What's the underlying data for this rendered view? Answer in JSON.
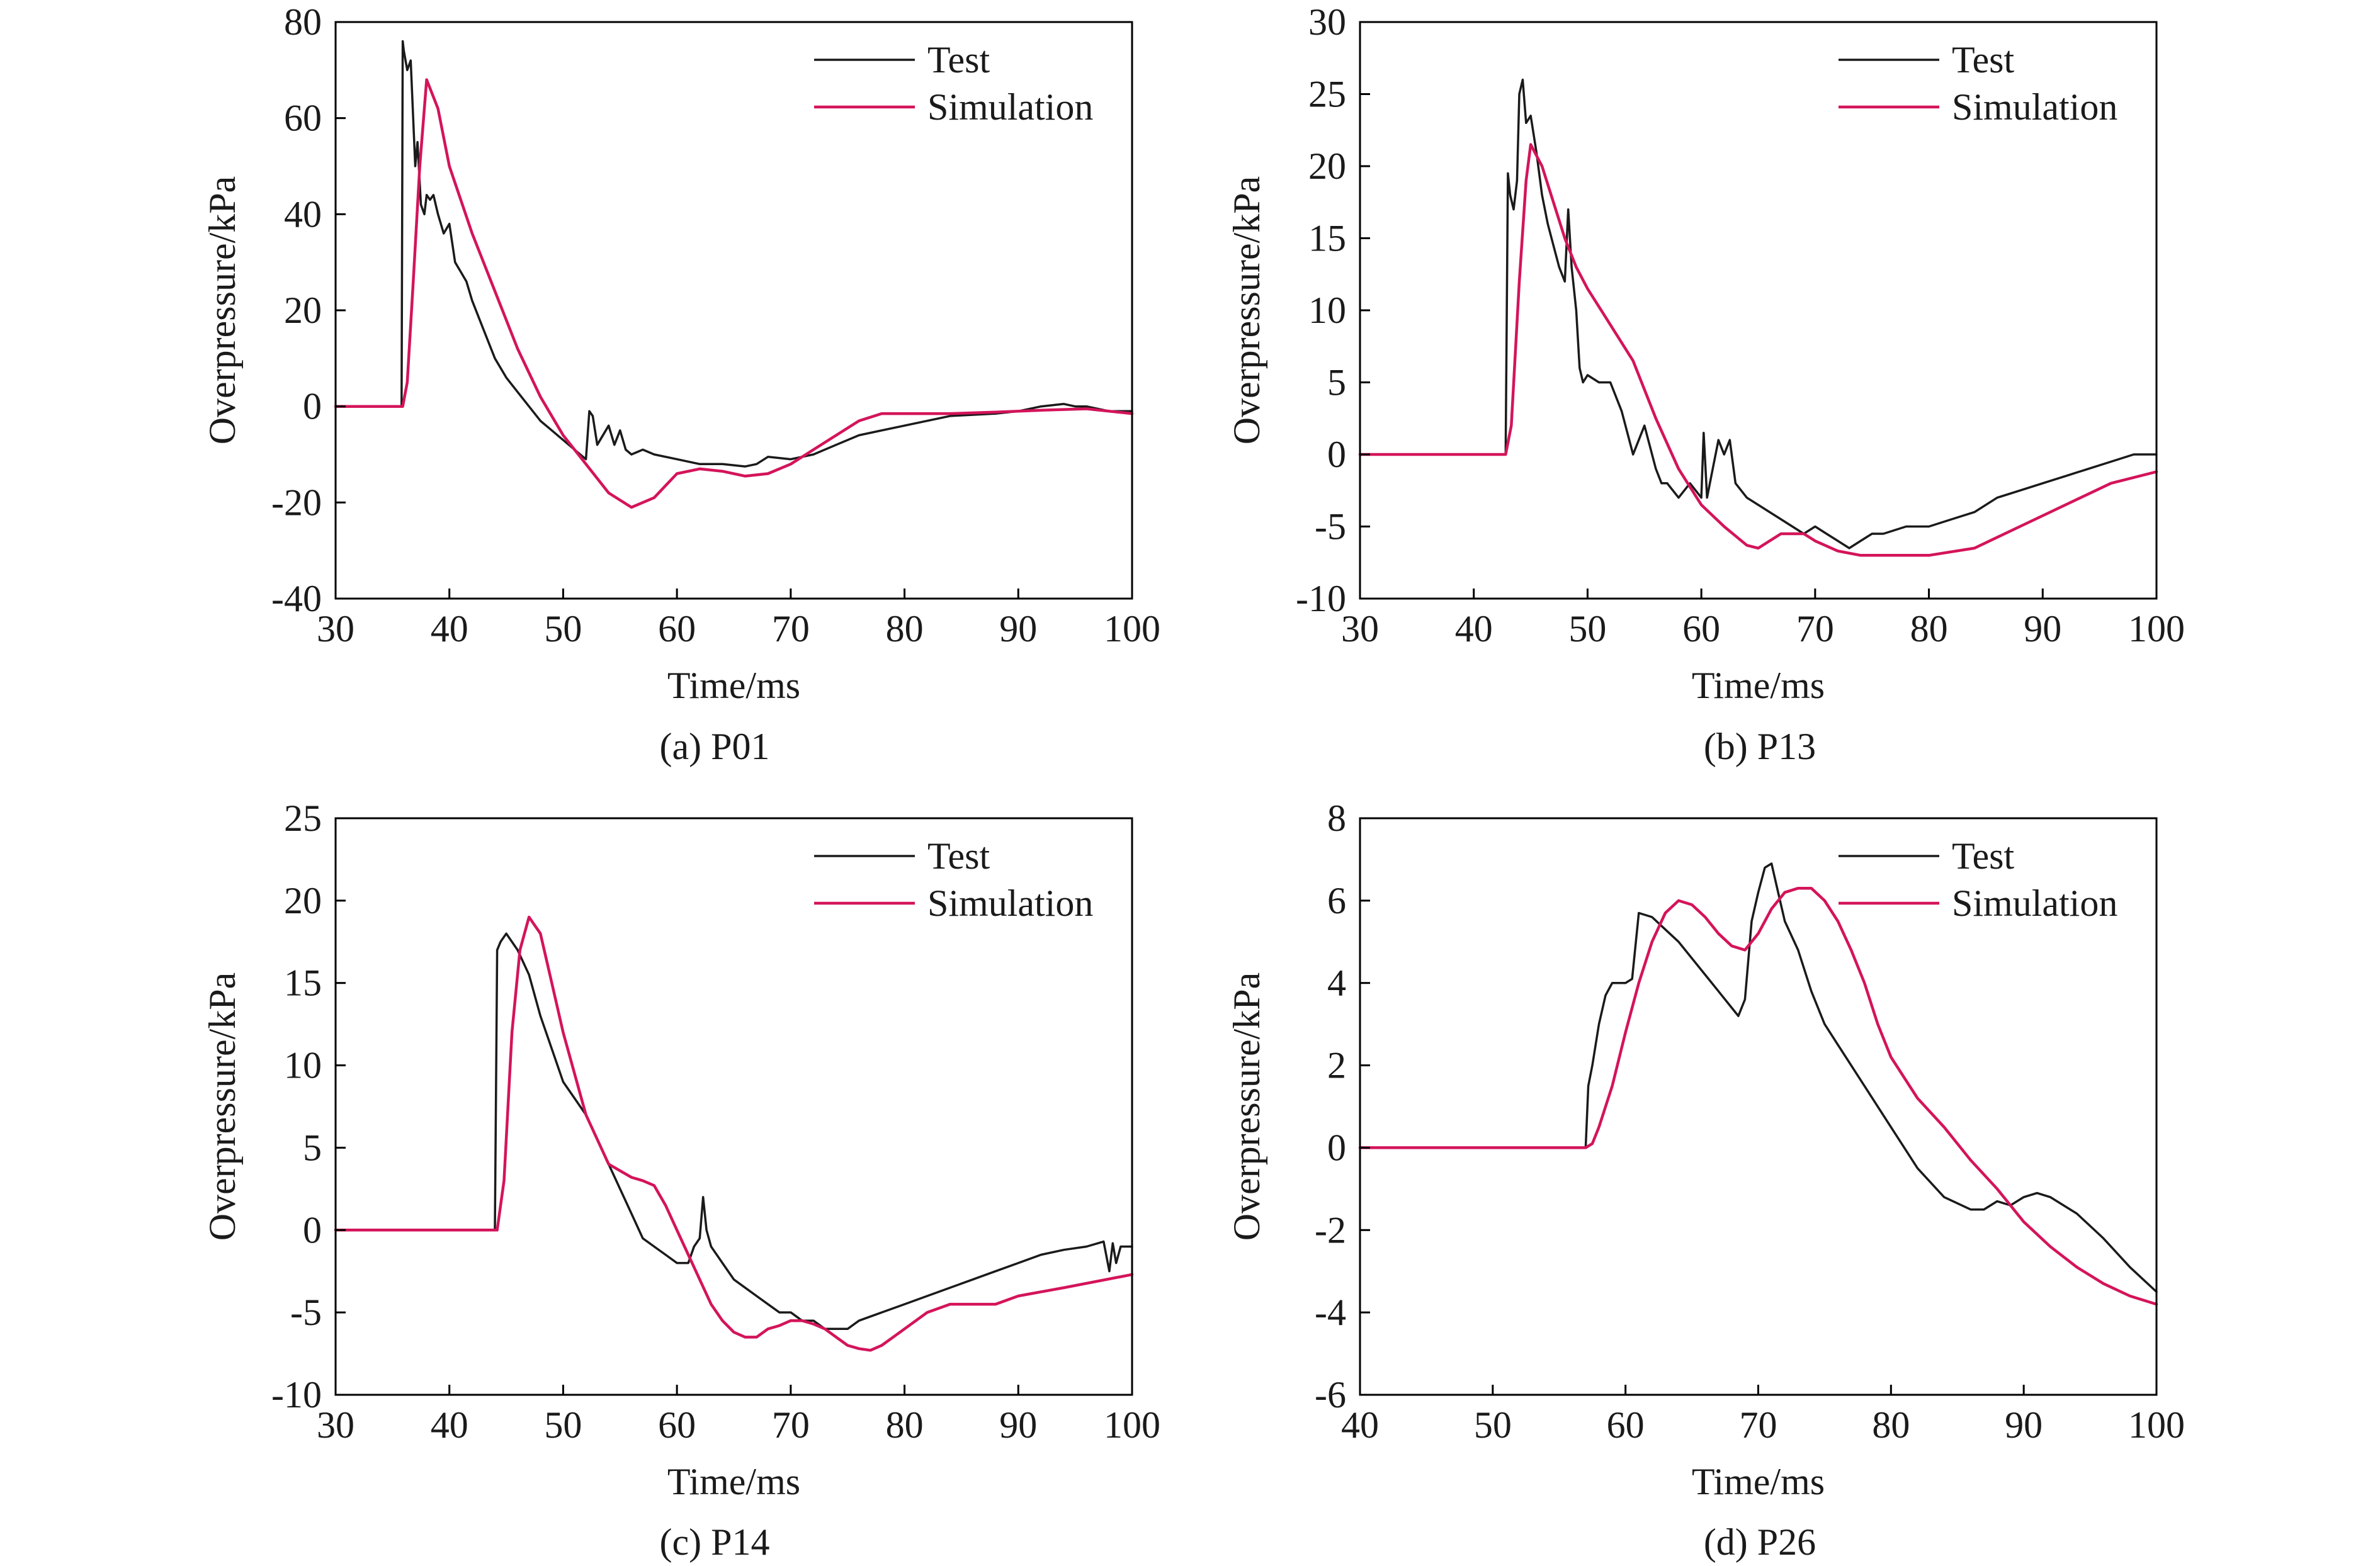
{
  "colors": {
    "test": "#1a1a1a",
    "simulation": "#d4145a",
    "axis": "#000000"
  },
  "chart_data": [
    {
      "type": "line",
      "caption": "(a) P01",
      "xlabel": "Time/ms",
      "ylabel": "Overpressure/kPa",
      "xlim": [
        30,
        100
      ],
      "ylim": [
        -40,
        80
      ],
      "xticks": [
        30,
        40,
        50,
        60,
        70,
        80,
        90,
        100
      ],
      "yticks": [
        -40,
        -20,
        0,
        20,
        40,
        60,
        80
      ],
      "legend": "top-right",
      "series": [
        {
          "name": "Test",
          "color": "#1a1a1a",
          "x": [
            30,
            35.8,
            35.9,
            36,
            36.3,
            36.6,
            37,
            37.2,
            37.5,
            37.8,
            38,
            38.3,
            38.6,
            39,
            39.5,
            40,
            40.5,
            41,
            41.5,
            42,
            43,
            44,
            45,
            46,
            47,
            48,
            49,
            50,
            51,
            52,
            52.3,
            52.6,
            53,
            54,
            54.5,
            55,
            55.5,
            56,
            57,
            58,
            60,
            62,
            64,
            66,
            67,
            68,
            70,
            72,
            74,
            76,
            78,
            80,
            84,
            88,
            90,
            92,
            94,
            95,
            96,
            98,
            100
          ],
          "y": [
            0,
            0,
            76,
            74,
            70,
            72,
            50,
            55,
            42,
            40,
            44,
            43,
            44,
            40,
            36,
            38,
            30,
            28,
            26,
            22,
            16,
            10,
            6,
            3,
            0,
            -3,
            -5,
            -7,
            -9,
            -11,
            -1,
            -2,
            -8,
            -4,
            -8,
            -5,
            -9,
            -10,
            -9,
            -10,
            -11,
            -12,
            -12,
            -12.5,
            -12,
            -10.5,
            -11,
            -10,
            -8,
            -6,
            -5,
            -4,
            -2,
            -1.5,
            -1,
            0,
            0.5,
            0,
            0,
            -1,
            -1
          ]
        },
        {
          "name": "Simulation",
          "color": "#d4145a",
          "x": [
            30,
            35.9,
            36.3,
            36.8,
            37.4,
            38,
            39,
            40,
            42,
            44,
            46,
            48,
            50,
            52,
            54,
            56,
            58,
            60,
            62,
            64,
            66,
            68,
            70,
            72,
            74,
            76,
            78,
            80,
            84,
            88,
            92,
            96,
            100
          ],
          "y": [
            0,
            0,
            5,
            25,
            50,
            68,
            62,
            50,
            36,
            24,
            12,
            2,
            -6,
            -12,
            -18,
            -21,
            -19,
            -14,
            -13,
            -13.5,
            -14.5,
            -14,
            -12,
            -9,
            -6,
            -3,
            -1.5,
            -1.5,
            -1.5,
            -1.2,
            -0.8,
            -0.5,
            -1.5
          ]
        }
      ]
    },
    {
      "type": "line",
      "caption": "(b) P13",
      "xlabel": "Time/ms",
      "ylabel": "Overpressure/kPa",
      "xlim": [
        30,
        100
      ],
      "ylim": [
        -10,
        30
      ],
      "xticks": [
        30,
        40,
        50,
        60,
        70,
        80,
        90,
        100
      ],
      "yticks": [
        -10,
        -5,
        0,
        5,
        10,
        15,
        20,
        25,
        30
      ],
      "legend": "top-right",
      "series": [
        {
          "name": "Test",
          "color": "#1a1a1a",
          "x": [
            30,
            42.8,
            43,
            43.2,
            43.5,
            43.8,
            44,
            44.3,
            44.6,
            45,
            45.5,
            46,
            46.5,
            47,
            47.5,
            48,
            48.3,
            48.6,
            49,
            49.3,
            49.6,
            50,
            51,
            52,
            53,
            54,
            55,
            56,
            56.5,
            57,
            58,
            59,
            60,
            60.2,
            60.5,
            61,
            61.5,
            62,
            62.5,
            63,
            64,
            65,
            66,
            67,
            68,
            69,
            70,
            71,
            72,
            73,
            74,
            75,
            76,
            78,
            80,
            82,
            84,
            86,
            88,
            90,
            92,
            94,
            96,
            98,
            100
          ],
          "y": [
            0,
            0,
            19.5,
            18,
            17,
            19,
            25,
            26,
            23,
            23.5,
            21,
            18,
            16,
            14.5,
            13,
            12,
            17,
            13,
            10,
            6,
            5,
            5.5,
            5,
            5,
            3,
            0,
            2,
            -1,
            -2,
            -2,
            -3,
            -2,
            -3,
            1.5,
            -3,
            -1,
            1,
            0,
            1,
            -2,
            -3,
            -3.5,
            -4,
            -4.5,
            -5,
            -5.5,
            -5,
            -5.5,
            -6,
            -6.5,
            -6,
            -5.5,
            -5.5,
            -5,
            -5,
            -4.5,
            -4,
            -3,
            -2.5,
            -2,
            -1.5,
            -1,
            -0.5,
            0,
            0
          ]
        },
        {
          "name": "Simulation",
          "color": "#d4145a",
          "x": [
            30,
            42.8,
            43.3,
            44,
            44.6,
            45,
            46,
            47,
            48,
            49,
            50,
            52,
            54,
            56,
            58,
            60,
            62,
            64,
            65,
            66,
            67,
            68,
            69,
            70,
            72,
            74,
            76,
            78,
            80,
            84,
            88,
            92,
            96,
            100
          ],
          "y": [
            0,
            0,
            2,
            12,
            19,
            21.5,
            20,
            17.5,
            15,
            13,
            11.5,
            9,
            6.5,
            2.5,
            -1,
            -3.5,
            -5,
            -6.3,
            -6.5,
            -6,
            -5.5,
            -5.5,
            -5.5,
            -6,
            -6.7,
            -7,
            -7,
            -7,
            -7,
            -6.5,
            -5,
            -3.5,
            -2,
            -1.2
          ]
        }
      ]
    },
    {
      "type": "line",
      "caption": "(c) P14",
      "xlabel": "Time/ms",
      "ylabel": "Overpressure/kPa",
      "xlim": [
        30,
        100
      ],
      "ylim": [
        -10,
        25
      ],
      "xticks": [
        30,
        40,
        50,
        60,
        70,
        80,
        90,
        100
      ],
      "yticks": [
        -10,
        -5,
        0,
        5,
        10,
        15,
        20,
        25
      ],
      "legend": "top-right",
      "series": [
        {
          "name": "Test",
          "color": "#1a1a1a",
          "x": [
            30,
            44,
            44.2,
            44.5,
            45,
            46,
            47,
            48,
            49,
            50,
            51,
            52,
            53,
            54,
            55,
            56,
            57,
            58,
            59,
            60,
            61,
            61.5,
            62,
            62.3,
            62.6,
            63,
            64,
            65,
            66,
            67,
            68,
            69,
            70,
            71,
            72,
            73,
            74,
            75,
            76,
            78,
            80,
            82,
            84,
            86,
            88,
            90,
            92,
            94,
            96,
            97.5,
            98,
            98.3,
            98.6,
            99,
            100
          ],
          "y": [
            0,
            0,
            17,
            17.5,
            18,
            17,
            15.5,
            13,
            11,
            9,
            8,
            7,
            5.5,
            4,
            2.5,
            1,
            -0.5,
            -1,
            -1.5,
            -2,
            -2,
            -1,
            -0.5,
            2,
            0,
            -1,
            -2,
            -3,
            -3.5,
            -4,
            -4.5,
            -5,
            -5,
            -5.5,
            -5.5,
            -6,
            -6,
            -6,
            -5.5,
            -5,
            -4.5,
            -4,
            -3.5,
            -3,
            -2.5,
            -2,
            -1.5,
            -1.2,
            -1,
            -0.7,
            -2.5,
            -0.8,
            -2,
            -1,
            -1
          ]
        },
        {
          "name": "Simulation",
          "color": "#d4145a",
          "x": [
            30,
            44.2,
            44.8,
            45.5,
            46.2,
            47,
            48,
            49,
            50,
            52,
            54,
            56,
            57,
            58,
            59,
            60,
            61,
            62,
            63,
            64,
            65,
            66,
            67,
            68,
            69,
            70,
            71,
            72,
            73,
            74,
            75,
            76,
            77,
            78,
            79,
            80,
            82,
            84,
            86,
            88,
            90,
            94,
            100
          ],
          "y": [
            0,
            0,
            3,
            12,
            17,
            19,
            18,
            15,
            12,
            7,
            4,
            3.2,
            3,
            2.7,
            1.5,
            0,
            -1.5,
            -3,
            -4.5,
            -5.5,
            -6.2,
            -6.5,
            -6.5,
            -6,
            -5.8,
            -5.5,
            -5.5,
            -5.7,
            -6,
            -6.5,
            -7,
            -7.2,
            -7.3,
            -7,
            -6.5,
            -6,
            -5,
            -4.5,
            -4.5,
            -4.5,
            -4,
            -3.5,
            -2.7
          ]
        }
      ]
    },
    {
      "type": "line",
      "caption": "(d) P26",
      "xlabel": "Time/ms",
      "ylabel": "Overpressure/kPa",
      "xlim": [
        40,
        100
      ],
      "ylim": [
        -6,
        8
      ],
      "xticks": [
        40,
        50,
        60,
        70,
        80,
        90,
        100
      ],
      "yticks": [
        -6,
        -4,
        -2,
        0,
        2,
        4,
        6,
        8
      ],
      "legend": "top-right",
      "series": [
        {
          "name": "Test",
          "color": "#1a1a1a",
          "x": [
            40,
            57,
            57.2,
            57.5,
            58,
            58.5,
            59,
            60,
            60.5,
            61,
            62,
            63,
            64,
            65,
            66,
            67,
            68,
            68.5,
            69,
            69.5,
            70,
            70.5,
            71,
            71.5,
            72,
            73,
            74,
            75,
            76,
            78,
            80,
            82,
            84,
            86,
            87,
            88,
            89,
            90,
            91,
            92,
            94,
            96,
            98,
            100
          ],
          "y": [
            0,
            0,
            1.5,
            2,
            3,
            3.7,
            4,
            4,
            4.1,
            5.7,
            5.6,
            5.3,
            5,
            4.6,
            4.2,
            3.8,
            3.4,
            3.2,
            3.6,
            5.5,
            6.2,
            6.8,
            6.9,
            6.2,
            5.5,
            4.8,
            3.8,
            3,
            2.5,
            1.5,
            0.5,
            -0.5,
            -1.2,
            -1.5,
            -1.5,
            -1.3,
            -1.4,
            -1.2,
            -1.1,
            -1.2,
            -1.6,
            -2.2,
            -2.9,
            -3.5
          ]
        },
        {
          "name": "Simulation",
          "color": "#d4145a",
          "x": [
            40,
            57,
            57.5,
            58,
            59,
            60,
            61,
            62,
            63,
            64,
            65,
            66,
            67,
            68,
            69,
            70,
            71,
            72,
            73,
            74,
            75,
            76,
            77,
            78,
            79,
            80,
            82,
            84,
            86,
            88,
            90,
            92,
            94,
            96,
            98,
            100
          ],
          "y": [
            0,
            0,
            0.1,
            0.5,
            1.5,
            2.8,
            4,
            5,
            5.7,
            6,
            5.9,
            5.6,
            5.2,
            4.9,
            4.8,
            5.2,
            5.8,
            6.2,
            6.3,
            6.3,
            6,
            5.5,
            4.8,
            4,
            3,
            2.2,
            1.2,
            0.5,
            -0.3,
            -1,
            -1.8,
            -2.4,
            -2.9,
            -3.3,
            -3.6,
            -3.8
          ]
        }
      ]
    }
  ]
}
